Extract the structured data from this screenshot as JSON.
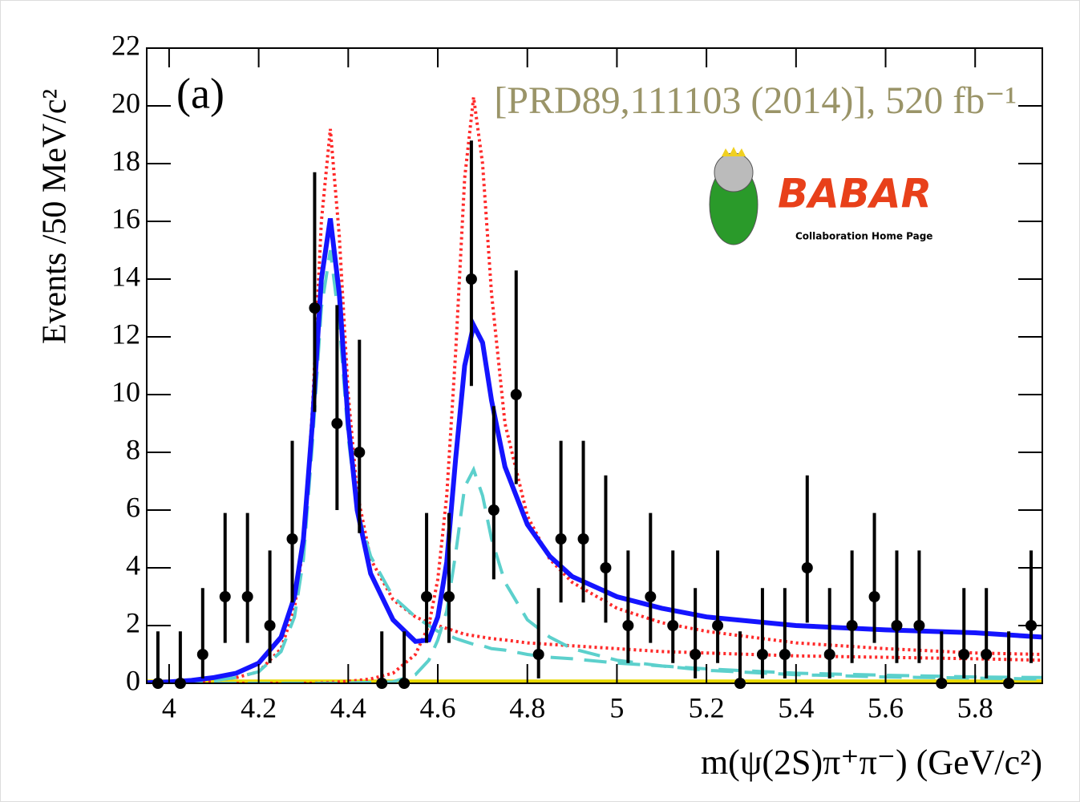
{
  "chart_data": {
    "type": "scatter",
    "y_label": "Events /50 MeV/c²",
    "x_label": "m(ψ(2S)π⁺π⁻) (GeV/c²)",
    "panel_label": "(a)",
    "reference": "[PRD89,111103 (2014)], 520 fb⁻¹",
    "logo": {
      "name": "BABAR",
      "subtitle": "Collaboration Home Page"
    },
    "xlim": [
      3.95,
      5.95
    ],
    "ylim": [
      0,
      22
    ],
    "xticks": [
      4,
      4.2,
      4.4,
      4.6,
      4.8,
      5,
      5.2,
      5.4,
      5.6,
      5.8
    ],
    "yticks": [
      0,
      2,
      4,
      6,
      8,
      10,
      12,
      14,
      16,
      18,
      20,
      22
    ],
    "points": {
      "color": "#000000",
      "x": [
        3.975,
        4.025,
        4.075,
        4.125,
        4.175,
        4.225,
        4.275,
        4.325,
        4.375,
        4.425,
        4.475,
        4.525,
        4.575,
        4.625,
        4.675,
        4.725,
        4.775,
        4.825,
        4.875,
        4.925,
        4.975,
        5.025,
        5.075,
        5.125,
        5.175,
        5.225,
        5.275,
        5.325,
        5.375,
        5.425,
        5.475,
        5.525,
        5.575,
        5.625,
        5.675,
        5.725,
        5.775,
        5.825,
        5.875,
        5.925
      ],
      "values": [
        0,
        0,
        1,
        3,
        3,
        2,
        5,
        13,
        9,
        8,
        0,
        0,
        3,
        3,
        14,
        6,
        10,
        1,
        5,
        5,
        4,
        2,
        3,
        2,
        1,
        2,
        0,
        1,
        1,
        4,
        1,
        2,
        3,
        2,
        2,
        0,
        1,
        1,
        0,
        2
      ],
      "errors_low": [
        0,
        0,
        0.83,
        1.6,
        1.6,
        1.3,
        2.2,
        3.6,
        3.0,
        2.8,
        0,
        0,
        1.6,
        1.6,
        3.7,
        2.4,
        3.1,
        0.83,
        2.2,
        2.2,
        1.9,
        1.3,
        1.6,
        1.3,
        0.83,
        1.3,
        0,
        0.83,
        0.83,
        1.9,
        0.83,
        1.3,
        1.6,
        1.3,
        1.3,
        0,
        0.83,
        0.83,
        0,
        1.3
      ],
      "errors_high": [
        1.8,
        1.8,
        2.3,
        2.9,
        2.9,
        2.6,
        3.4,
        4.7,
        4.1,
        3.9,
        1.8,
        1.8,
        2.9,
        2.9,
        4.8,
        3.6,
        4.3,
        2.3,
        3.4,
        3.4,
        3.2,
        2.6,
        2.9,
        2.6,
        2.3,
        2.6,
        1.8,
        2.3,
        2.3,
        3.2,
        2.3,
        2.6,
        2.9,
        2.6,
        2.6,
        1.8,
        2.3,
        2.3,
        1.8,
        2.6
      ]
    },
    "curve_x": [
      3.95,
      4.0,
      4.05,
      4.1,
      4.15,
      4.2,
      4.25,
      4.28,
      4.3,
      4.32,
      4.34,
      4.36,
      4.38,
      4.4,
      4.42,
      4.45,
      4.5,
      4.55,
      4.58,
      4.6,
      4.62,
      4.64,
      4.66,
      4.68,
      4.7,
      4.72,
      4.75,
      4.8,
      4.85,
      4.9,
      5.0,
      5.1,
      5.2,
      5.4,
      5.6,
      5.8,
      5.95
    ],
    "curves": [
      {
        "color": "#e8d800",
        "style": "solid",
        "values": [
          0.05,
          0.05,
          0.05,
          0.05,
          0.05,
          0.05,
          0.05,
          0.05,
          0.05,
          0.05,
          0.05,
          0.05,
          0.05,
          0.05,
          0.05,
          0.05,
          0.05,
          0.05,
          0.05,
          0.05,
          0.05,
          0.05,
          0.05,
          0.05,
          0.05,
          0.05,
          0.05,
          0.05,
          0.05,
          0.05,
          0.05,
          0.05,
          0.05,
          0.05,
          0.05,
          0.05,
          0.05
        ]
      },
      {
        "color": "#ff2a2a",
        "style": "dotted",
        "values": [
          0,
          0.02,
          0.05,
          0.1,
          0.2,
          0.4,
          1.2,
          2.6,
          4.8,
          9.5,
          16.0,
          19.2,
          15.5,
          10.0,
          6.6,
          4.3,
          2.9,
          2.3,
          2.1,
          2.0,
          1.9,
          1.8,
          1.7,
          1.65,
          1.6,
          1.55,
          1.5,
          1.4,
          1.35,
          1.3,
          1.2,
          1.1,
          1.05,
          0.95,
          0.9,
          0.85,
          0.8
        ]
      },
      {
        "color": "#ff2a2a",
        "style": "dotted",
        "values": [
          0,
          0,
          0,
          0,
          0,
          0,
          0,
          0,
          0,
          0,
          0.02,
          0.03,
          0.05,
          0.07,
          0.1,
          0.15,
          0.35,
          1.0,
          2.0,
          3.6,
          6.5,
          11.5,
          17.5,
          20.3,
          18.0,
          13.5,
          9.0,
          5.8,
          4.3,
          3.5,
          2.6,
          2.1,
          1.8,
          1.4,
          1.2,
          1.05,
          1.0
        ]
      },
      {
        "color": "#5cd0cc",
        "style": "dashed",
        "values": [
          0,
          0.02,
          0.05,
          0.1,
          0.2,
          0.4,
          1.1,
          2.3,
          4.3,
          8.3,
          13.0,
          15.0,
          12.5,
          8.5,
          6.0,
          4.4,
          3.0,
          2.3,
          2.0,
          1.8,
          1.7,
          1.55,
          1.45,
          1.35,
          1.3,
          1.2,
          1.15,
          1.0,
          0.9,
          0.85,
          0.7,
          0.6,
          0.5,
          0.35,
          0.28,
          0.22,
          0.2
        ]
      },
      {
        "color": "#5cd0cc",
        "style": "dashed",
        "values": [
          0,
          0,
          0,
          0,
          0,
          0,
          0,
          0,
          0,
          0,
          0,
          0,
          0,
          0.01,
          0.02,
          0.03,
          0.05,
          0.3,
          0.8,
          1.5,
          2.5,
          4.5,
          6.8,
          7.4,
          6.5,
          5.0,
          3.5,
          2.2,
          1.6,
          1.2,
          0.8,
          0.6,
          0.45,
          0.3,
          0.22,
          0.18,
          0.15
        ]
      },
      {
        "color": "#1414ff",
        "style": "solid",
        "values": [
          0.02,
          0.05,
          0.1,
          0.2,
          0.35,
          0.7,
          1.6,
          3.0,
          5.0,
          9.0,
          14.0,
          16.1,
          13.5,
          9.0,
          6.0,
          3.8,
          2.2,
          1.45,
          1.5,
          2.3,
          4.2,
          7.8,
          11.0,
          12.4,
          11.8,
          9.8,
          7.5,
          5.5,
          4.4,
          3.7,
          3.0,
          2.6,
          2.3,
          2.0,
          1.85,
          1.75,
          1.6
        ]
      }
    ]
  }
}
